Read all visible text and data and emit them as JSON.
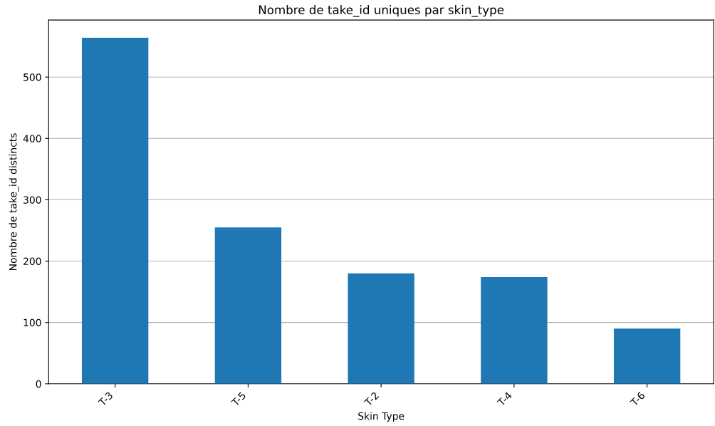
{
  "chart_data": {
    "type": "bar",
    "title": "Nombre de take_id uniques par skin_type",
    "xlabel": "Skin Type",
    "ylabel": "Nombre de take_id distincts",
    "categories": [
      "T-3",
      "T-5",
      "T-2",
      "T-4",
      "T-6"
    ],
    "values": [
      564,
      255,
      180,
      174,
      90
    ],
    "color": "#1f77b4",
    "ylim": [
      0,
      593
    ],
    "yticks": [
      0,
      100,
      200,
      300,
      400,
      500
    ],
    "grid": "y",
    "legend": false
  }
}
